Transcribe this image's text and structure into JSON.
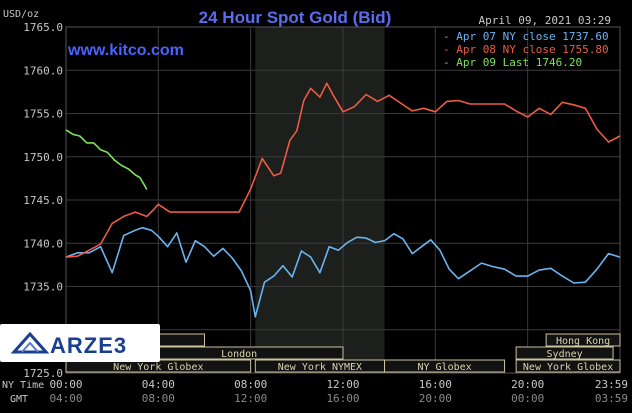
{
  "chart_data": {
    "type": "line",
    "title": "24 Hour Spot Gold (Bid)",
    "datestamp": "April 09, 2021 03:29",
    "watermark": "www.kitco.com",
    "y_unit_label": "USD/oz",
    "ylim": [
      1725,
      1765
    ],
    "y_ticks": [
      "1725.0",
      "1730.0",
      "1735.0",
      "1740.0",
      "1745.0",
      "1750.0",
      "1755.0",
      "1760.0",
      "1765.0"
    ],
    "x_ticks_ny": [
      "00:00",
      "04:00",
      "08:00",
      "12:00",
      "16:00",
      "20:00",
      "23:59"
    ],
    "x_ticks_gmt": [
      "04:00",
      "08:00",
      "12:00",
      "16:00",
      "20:00",
      "00:00",
      "03:59"
    ],
    "x_row_labels": {
      "ny": "NY Time",
      "gmt": "GMT"
    },
    "legend": [
      {
        "label": "- Apr 07 NY close 1737.60",
        "color": "#6ab4f0"
      },
      {
        "label": "- Apr 08 NY close 1755.80",
        "color": "#ec5b45"
      },
      {
        "label": "- Apr 09 Last 1746.20",
        "color": "#7ee05c"
      }
    ],
    "series": [
      {
        "name": "Apr 07",
        "color": "#6ab4f0",
        "x": [
          0,
          0.5,
          1,
          1.5,
          2,
          2.5,
          3,
          3.3,
          3.7,
          4,
          4.4,
          4.8,
          5.2,
          5.6,
          6,
          6.4,
          6.8,
          7.2,
          7.6,
          8,
          8.2,
          8.6,
          9,
          9.4,
          9.8,
          10.2,
          10.6,
          11,
          11.4,
          11.8,
          12.2,
          12.6,
          13,
          13.4,
          13.8,
          14.2,
          14.6,
          15,
          15.4,
          15.8,
          16.2,
          16.6,
          17,
          17.5,
          18,
          18.5,
          19,
          19.5,
          20,
          20.5,
          21,
          21.5,
          22,
          22.5,
          23,
          23.5,
          24
        ],
        "y": [
          1738.4,
          1738.9,
          1738.9,
          1739.6,
          1736.6,
          1740.9,
          1741.5,
          1741.8,
          1741.5,
          1740.8,
          1739.6,
          1741.2,
          1737.8,
          1740.3,
          1739.6,
          1738.5,
          1739.4,
          1738.3,
          1736.8,
          1734.5,
          1731.5,
          1735.5,
          1736.2,
          1737.4,
          1736.1,
          1739.1,
          1738.4,
          1736.6,
          1739.6,
          1739.2,
          1740.1,
          1740.7,
          1740.6,
          1740.1,
          1740.3,
          1741.1,
          1740.5,
          1738.8,
          1739.6,
          1740.4,
          1739.2,
          1737.0,
          1735.9,
          1736.8,
          1737.7,
          1737.3,
          1737.0,
          1736.2,
          1736.2,
          1736.9,
          1737.1,
          1736.2,
          1735.4,
          1735.5,
          1737.0,
          1738.8,
          1738.4
        ]
      },
      {
        "name": "Apr 08",
        "color": "#ec5b45",
        "x": [
          0,
          0.5,
          1,
          1.5,
          2,
          2.5,
          3,
          3.5,
          3.8,
          4,
          4.5,
          5,
          6,
          7,
          7.5,
          8,
          8.5,
          9,
          9.3,
          9.7,
          10,
          10.3,
          10.6,
          11,
          11.3,
          11.6,
          12,
          12.5,
          13,
          13.5,
          14,
          14.5,
          15,
          15.5,
          16,
          16.5,
          17,
          17.5,
          18,
          18.5,
          19,
          19.5,
          20,
          20.5,
          21,
          21.5,
          22,
          22.5,
          23,
          23.5,
          24
        ],
        "y": [
          1738.4,
          1738.5,
          1739.2,
          1739.9,
          1742.3,
          1743.1,
          1743.6,
          1743.1,
          1743.9,
          1744.5,
          1743.6,
          1743.6,
          1743.6,
          1743.6,
          1743.6,
          1746.3,
          1749.8,
          1747.8,
          1748.1,
          1751.9,
          1753.0,
          1756.5,
          1757.9,
          1756.9,
          1758.5,
          1757.0,
          1755.2,
          1755.8,
          1757.2,
          1756.4,
          1757.1,
          1756.2,
          1755.3,
          1755.6,
          1755.2,
          1756.4,
          1756.5,
          1756.1,
          1756.1,
          1756.1,
          1756.1,
          1755.3,
          1754.6,
          1755.6,
          1754.9,
          1756.3,
          1756.0,
          1755.6,
          1753.2,
          1751.7,
          1752.4
        ]
      },
      {
        "name": "Apr 09",
        "color": "#7ee05c",
        "x": [
          0,
          0.3,
          0.6,
          0.9,
          1.2,
          1.5,
          1.8,
          2.1,
          2.4,
          2.7,
          3.0,
          3.2,
          3.4,
          3.5
        ],
        "y": [
          1753.1,
          1752.6,
          1752.4,
          1751.6,
          1751.6,
          1750.8,
          1750.5,
          1749.6,
          1749.0,
          1748.6,
          1747.9,
          1747.6,
          1746.7,
          1746.2
        ]
      }
    ],
    "sessions": [
      {
        "label": "",
        "hours": [
          0,
          6
        ],
        "row": 1,
        "label_visible": false
      },
      {
        "label": "London",
        "hours": [
          3,
          12
        ],
        "row": 2
      },
      {
        "label": "New York Globex",
        "hours": [
          0,
          8
        ],
        "row": 3
      },
      {
        "label": "New York NYMEX",
        "hours": [
          8.2,
          13.8
        ],
        "row": 3
      },
      {
        "label": "NY Globex",
        "hours": [
          13.8,
          19
        ],
        "row": 3
      },
      {
        "label": "Hong Kong",
        "hours": [
          20.8,
          24
        ],
        "row": 1
      },
      {
        "label": "Sydney",
        "hours": [
          19.5,
          23.7
        ],
        "row": 2
      },
      {
        "label": "New York Globex",
        "hours": [
          19.5,
          24
        ],
        "row": 3
      }
    ],
    "highlight_hours": [
      8.2,
      13.8
    ],
    "grid": true
  },
  "overlay_logo": {
    "text": "ARZE3",
    "accent": "#1b3f8f"
  },
  "colors": {
    "plot_bg": "#000000",
    "grid": "#3a3a3a",
    "highlight": "#1c1f1c",
    "title": "#5a6cf0",
    "watermark": "#4a63ff",
    "axis_text": "#c8c8c8",
    "session_fill": "#121212",
    "session_border": "#c9c49d"
  }
}
